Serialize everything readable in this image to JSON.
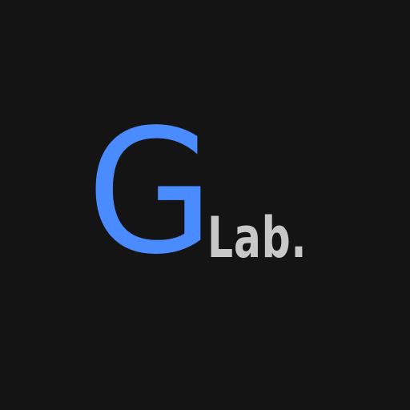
{
  "logo": {
    "mark": "G",
    "wordmark": "Lab.",
    "colors": {
      "background": "#141415",
      "mark": "#4a8cff",
      "wordmark": "#c8c8c8"
    }
  }
}
